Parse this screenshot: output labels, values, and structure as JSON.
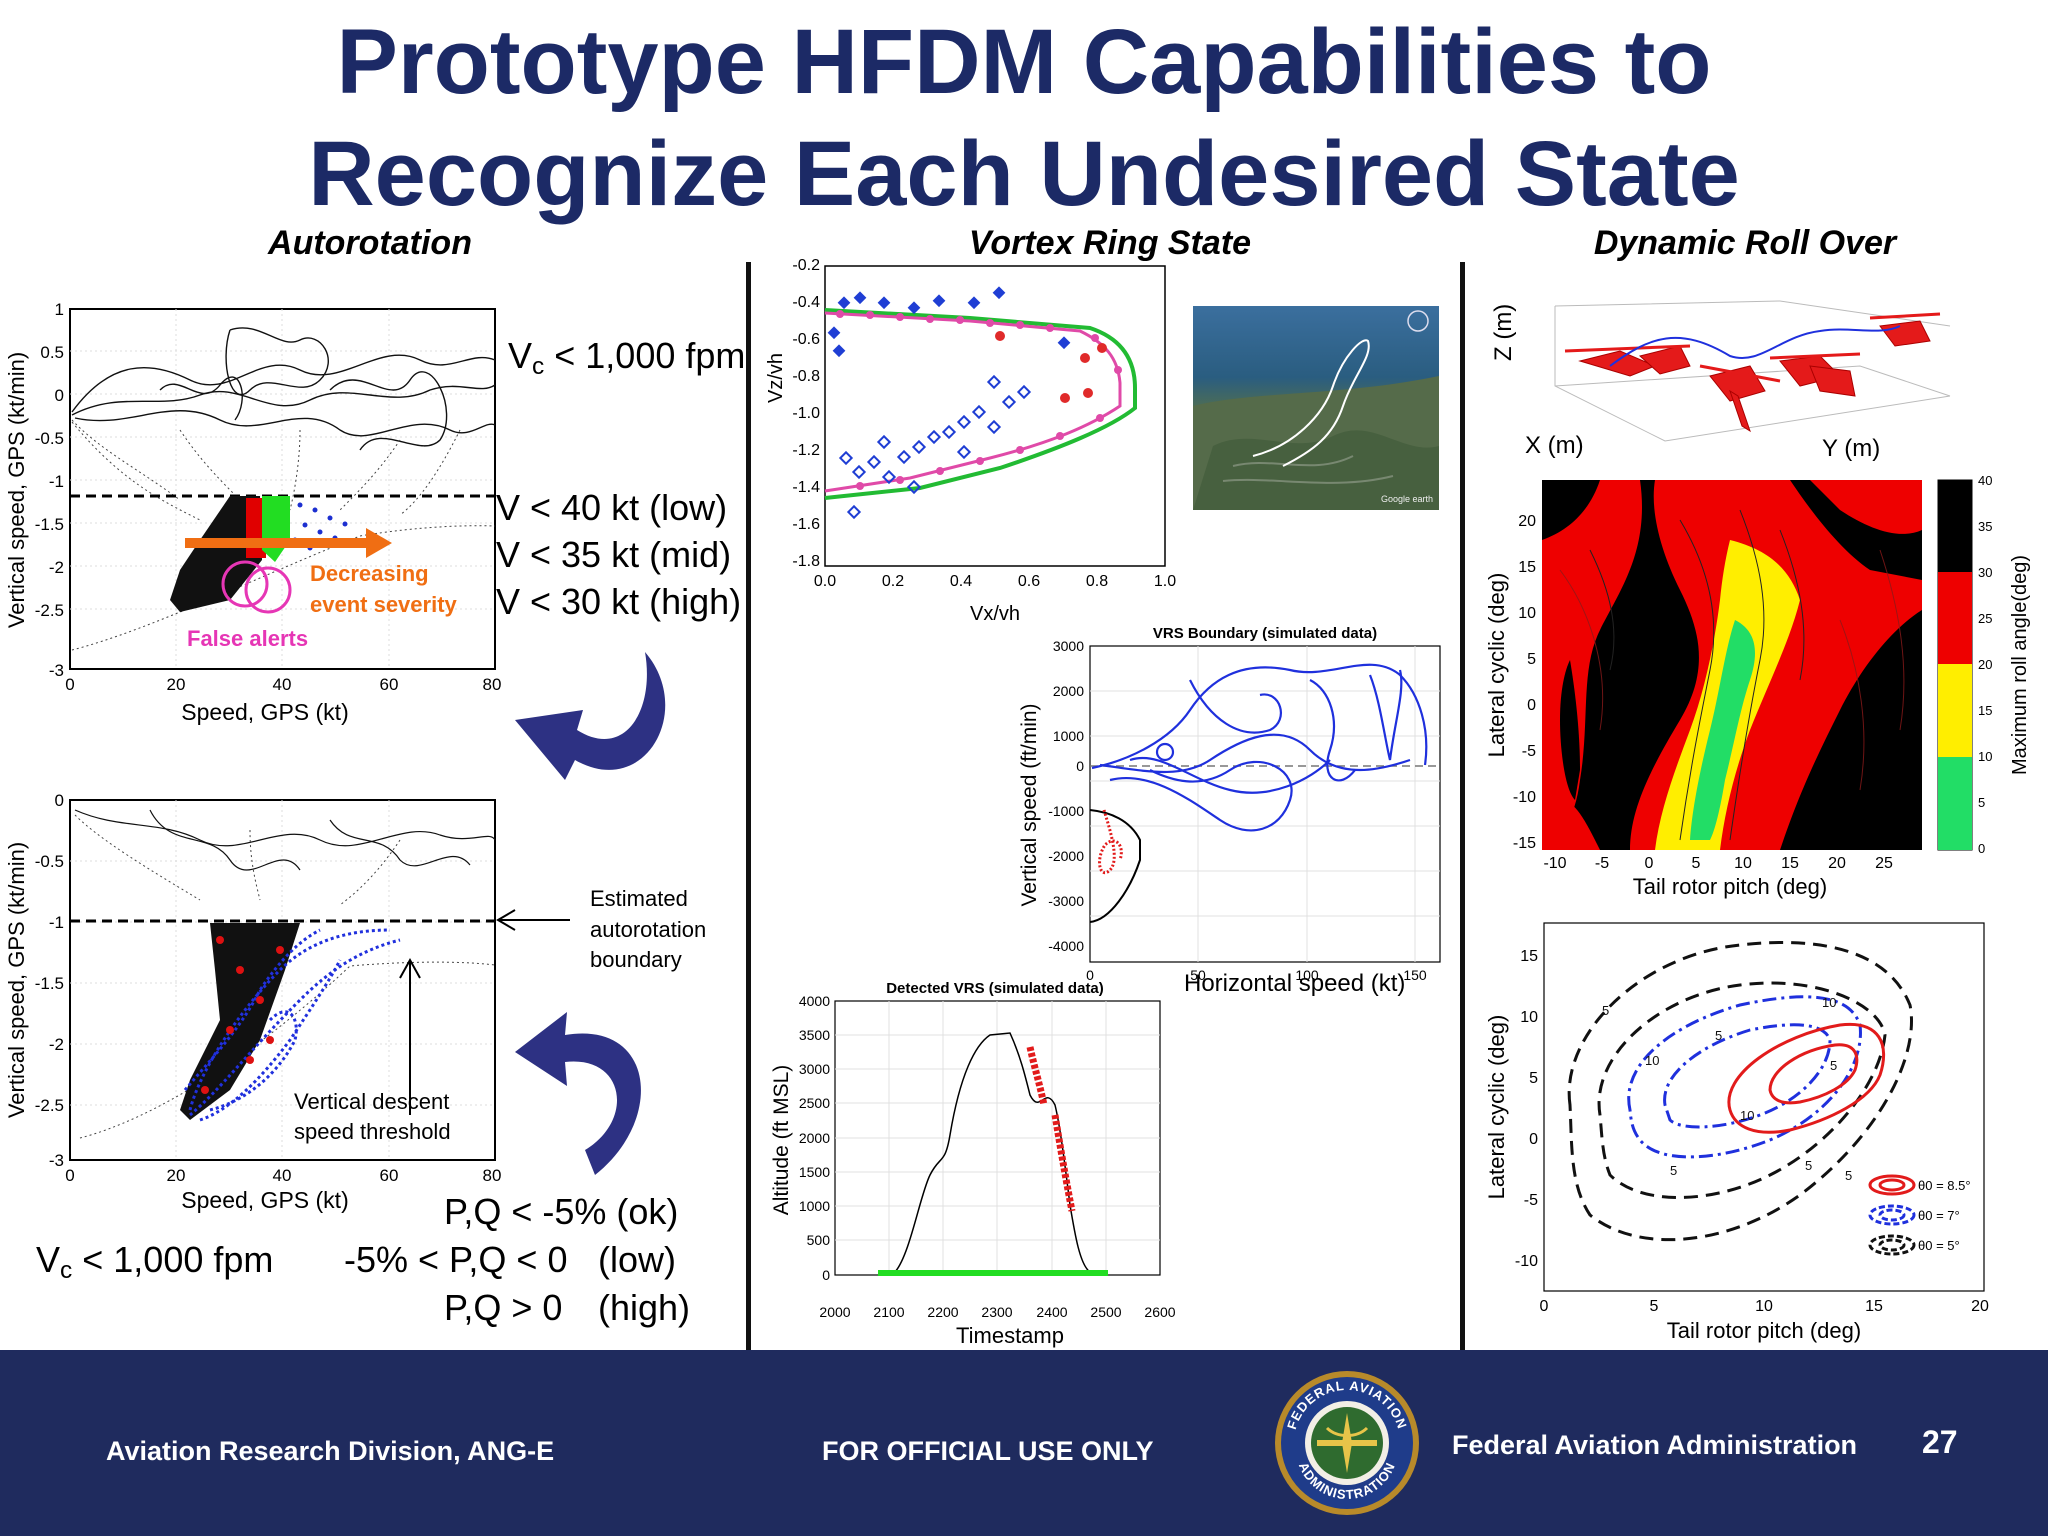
{
  "slide": {
    "title_line1": "Prototype HFDM Capabilities to",
    "title_line2": "Recognize Each Undesired State",
    "page_number": "27"
  },
  "columns": {
    "autorotation": "Autorotation",
    "vrs": "Vortex Ring State",
    "drollover": "Dynamic Roll Over"
  },
  "autorotation": {
    "cond_top_pre": "V",
    "cond_top_sub": "c",
    "cond_top_post": " < 1,000 fpm",
    "speed_low": "V < 40 kt (low)",
    "speed_mid": "V < 35 kt (mid)",
    "speed_high": "V < 30 kt (high)",
    "decreasing_1": "Decreasing",
    "decreasing_2": "event severity",
    "false_alerts": "False alerts",
    "chart1": {
      "ylabel": "Vertical speed, GPS (kt/min)",
      "xlabel": "Speed, GPS (kt)",
      "yticks": [
        "1",
        "0.5",
        "0",
        "-0.5",
        "-1",
        "-1.5",
        "-2",
        "-2.5",
        "-3"
      ],
      "xticks": [
        "0",
        "20",
        "40",
        "60",
        "80"
      ]
    },
    "chart2": {
      "ylabel": "Vertical speed, GPS (kt/min)",
      "xlabel": "Speed, GPS (kt)",
      "yticks": [
        "0",
        "-0.5",
        "-1",
        "-1.5",
        "-2",
        "-2.5",
        "-3"
      ],
      "xticks": [
        "0",
        "20",
        "40",
        "60",
        "80"
      ]
    },
    "est_1": "Estimated",
    "est_2": "autorotation",
    "est_3": "boundary",
    "vd_1": "Vertical descent",
    "vd_2": "speed threshold",
    "cond_bot_pre": "V",
    "cond_bot_sub": "c",
    "cond_bot_post": " < 1,000 fpm",
    "pq_ok": "P,Q < -5% (ok)",
    "pq_low_a": "-5% < P,Q < 0",
    "pq_low_b": "(low)",
    "pq_high_a": "P,Q > 0",
    "pq_high_b": "(high)"
  },
  "vrs": {
    "chart1": {
      "ylabel": "Vz/vh",
      "xlabel": "Vx/vh",
      "yticks": [
        "-0.2",
        "-0.4",
        "-0.6",
        "-0.8",
        "-1.0",
        "-1.2",
        "-1.4",
        "-1.6",
        "-1.8"
      ],
      "xticks": [
        "0.0",
        "0.2",
        "0.4",
        "0.6",
        "0.8",
        "1.0"
      ]
    },
    "boundary": {
      "title": "VRS Boundary (simulated data)",
      "ylabel": "Vertical speed (ft/min)",
      "xlabel": "Horizontal speed (kt)",
      "yticks": [
        "3000",
        "2000",
        "1000",
        "0",
        "-1000",
        "-2000",
        "-3000",
        "-4000"
      ],
      "xticks": [
        "0",
        "50",
        "100",
        "150"
      ]
    },
    "detected": {
      "title": "Detected VRS (simulated data)",
      "ylabel": "Altitude (ft MSL)",
      "xlabel": "Timestamp",
      "yticks": [
        "4000",
        "3500",
        "3000",
        "2500",
        "2000",
        "1500",
        "1000",
        "500",
        "0"
      ],
      "xticks": [
        "2000",
        "2100",
        "2200",
        "2300",
        "2400",
        "2500",
        "2600"
      ]
    },
    "map_credit": "Google earth"
  },
  "drollover": {
    "z_label": "Z (m)",
    "x_label": "X (m)",
    "y_label": "Y (m)",
    "heat": {
      "ylabel": "Lateral cyclic (deg)",
      "xlabel": "Tail rotor pitch (deg)",
      "cbar_label": "Maximum roll angle(deg)",
      "yticks": [
        "20",
        "15",
        "10",
        "5",
        "0",
        "-5",
        "-10",
        "-15"
      ],
      "xticks": [
        "-10",
        "-5",
        "0",
        "5",
        "10",
        "15",
        "20",
        "25"
      ],
      "cbar_ticks": [
        "40",
        "35",
        "30",
        "25",
        "20",
        "15",
        "10",
        "5",
        "0"
      ]
    },
    "contour": {
      "ylabel": "Lateral cyclic (deg)",
      "xlabel": "Tail rotor pitch (deg)",
      "yticks": [
        "15",
        "10",
        "5",
        "0",
        "-5",
        "-10"
      ],
      "xticks": [
        "0",
        "5",
        "10",
        "15",
        "20"
      ],
      "legend": [
        "θ0 = 8.5°",
        "θ0 = 7°",
        "θ0 = 5°"
      ]
    }
  },
  "footer": {
    "left": "Aviation Research Division, ANG-E",
    "center": "FOR OFFICIAL USE ONLY",
    "right": "Federal Aviation Administration",
    "seal_top": "FEDERAL AVIATION",
    "seal_bottom": "ADMINISTRATION"
  }
}
